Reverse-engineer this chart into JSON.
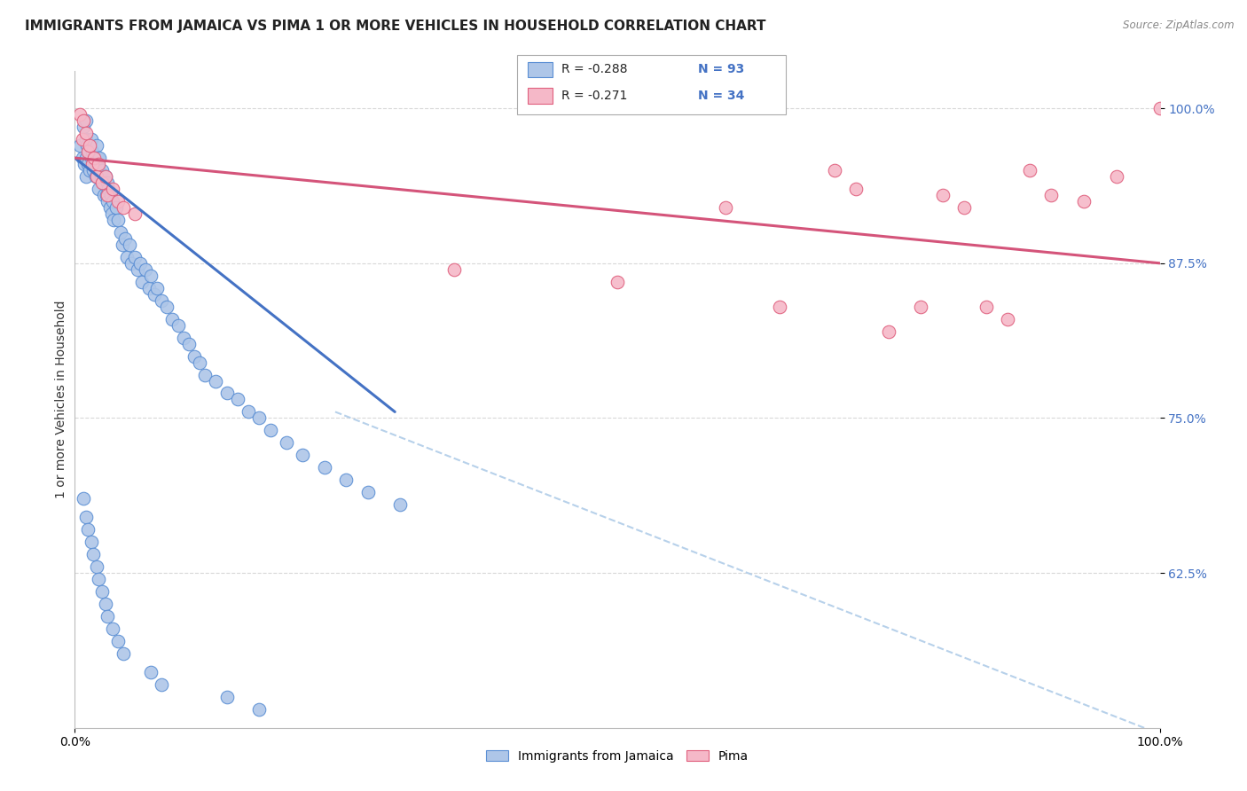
{
  "title": "IMMIGRANTS FROM JAMAICA VS PIMA 1 OR MORE VEHICLES IN HOUSEHOLD CORRELATION CHART",
  "source": "Source: ZipAtlas.com",
  "ylabel": "1 or more Vehicles in Household",
  "legend_labels": [
    "Immigrants from Jamaica",
    "Pima"
  ],
  "legend_r": [
    "R = -0.288",
    "R = -0.271"
  ],
  "legend_n": [
    "N = 93",
    "N = 34"
  ],
  "blue_color": "#aec6e8",
  "blue_edge_color": "#5b8fd4",
  "pink_color": "#f5b8c8",
  "pink_edge_color": "#e0607e",
  "blue_line_color": "#4472c4",
  "pink_line_color": "#d4547a",
  "dashed_line_color": "#b0cce8",
  "xlim": [
    0.0,
    1.0
  ],
  "ylim": [
    0.5,
    1.03
  ],
  "yticks": [
    0.625,
    0.75,
    0.875,
    1.0
  ],
  "ytick_labels": [
    "62.5%",
    "75.0%",
    "87.5%",
    "100.0%"
  ],
  "xtick_labels": [
    "0.0%",
    "100.0%"
  ],
  "xtick_positions": [
    0.0,
    1.0
  ],
  "background_color": "#ffffff",
  "grid_color": "#d8d8d8",
  "blue_scatter_x": [
    0.005,
    0.007,
    0.008,
    0.009,
    0.01,
    0.01,
    0.01,
    0.01,
    0.011,
    0.012,
    0.013,
    0.014,
    0.015,
    0.015,
    0.016,
    0.017,
    0.018,
    0.019,
    0.02,
    0.02,
    0.021,
    0.022,
    0.022,
    0.023,
    0.024,
    0.025,
    0.026,
    0.027,
    0.028,
    0.029,
    0.03,
    0.03,
    0.031,
    0.032,
    0.033,
    0.034,
    0.035,
    0.036,
    0.038,
    0.04,
    0.042,
    0.044,
    0.046,
    0.048,
    0.05,
    0.052,
    0.055,
    0.058,
    0.06,
    0.062,
    0.065,
    0.068,
    0.07,
    0.073,
    0.076,
    0.08,
    0.085,
    0.09,
    0.095,
    0.1,
    0.105,
    0.11,
    0.115,
    0.12,
    0.13,
    0.14,
    0.15,
    0.16,
    0.17,
    0.18,
    0.195,
    0.21,
    0.23,
    0.25,
    0.27,
    0.3,
    0.008,
    0.01,
    0.012,
    0.015,
    0.017,
    0.02,
    0.022,
    0.025,
    0.028,
    0.03,
    0.035,
    0.04,
    0.045,
    0.07,
    0.08,
    0.14,
    0.17
  ],
  "blue_scatter_y": [
    0.97,
    0.96,
    0.985,
    0.955,
    0.99,
    0.975,
    0.96,
    0.945,
    0.97,
    0.955,
    0.965,
    0.95,
    0.975,
    0.96,
    0.965,
    0.95,
    0.96,
    0.945,
    0.97,
    0.955,
    0.96,
    0.95,
    0.935,
    0.96,
    0.945,
    0.95,
    0.94,
    0.93,
    0.945,
    0.93,
    0.94,
    0.925,
    0.935,
    0.92,
    0.93,
    0.915,
    0.925,
    0.91,
    0.92,
    0.91,
    0.9,
    0.89,
    0.895,
    0.88,
    0.89,
    0.875,
    0.88,
    0.87,
    0.875,
    0.86,
    0.87,
    0.855,
    0.865,
    0.85,
    0.855,
    0.845,
    0.84,
    0.83,
    0.825,
    0.815,
    0.81,
    0.8,
    0.795,
    0.785,
    0.78,
    0.77,
    0.765,
    0.755,
    0.75,
    0.74,
    0.73,
    0.72,
    0.71,
    0.7,
    0.69,
    0.68,
    0.685,
    0.67,
    0.66,
    0.65,
    0.64,
    0.63,
    0.62,
    0.61,
    0.6,
    0.59,
    0.58,
    0.57,
    0.56,
    0.545,
    0.535,
    0.525,
    0.515
  ],
  "pink_scatter_x": [
    0.005,
    0.007,
    0.008,
    0.01,
    0.012,
    0.014,
    0.016,
    0.018,
    0.02,
    0.022,
    0.025,
    0.028,
    0.03,
    0.035,
    0.04,
    0.045,
    0.055,
    0.35,
    0.5,
    0.6,
    0.65,
    0.7,
    0.72,
    0.75,
    0.78,
    0.8,
    0.82,
    0.84,
    0.86,
    0.88,
    0.9,
    0.93,
    0.96,
    1.0
  ],
  "pink_scatter_y": [
    0.995,
    0.975,
    0.99,
    0.98,
    0.965,
    0.97,
    0.955,
    0.96,
    0.945,
    0.955,
    0.94,
    0.945,
    0.93,
    0.935,
    0.925,
    0.92,
    0.915,
    0.87,
    0.86,
    0.92,
    0.84,
    0.95,
    0.935,
    0.82,
    0.84,
    0.93,
    0.92,
    0.84,
    0.83,
    0.95,
    0.93,
    0.925,
    0.945,
    1.0
  ],
  "blue_line_x": [
    0.0,
    0.295
  ],
  "blue_line_y": [
    0.96,
    0.755
  ],
  "pink_line_x": [
    0.0,
    1.0
  ],
  "pink_line_y": [
    0.96,
    0.875
  ],
  "dashed_line_x": [
    0.24,
    1.0
  ],
  "dashed_line_y": [
    0.755,
    0.495
  ]
}
